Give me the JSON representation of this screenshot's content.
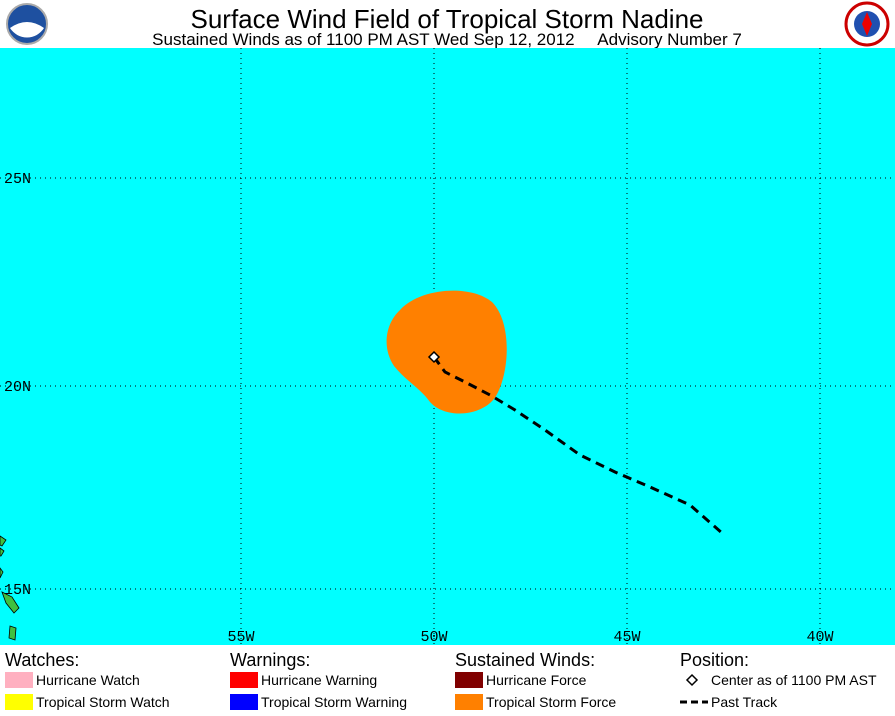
{
  "header": {
    "title": "Surface Wind Field of Tropical Storm Nadine",
    "subtitle": "Sustained Winds as of 1100 PM AST Wed Sep 12, 2012     Advisory Number 7"
  },
  "map": {
    "lat_labels": [
      "25N",
      "20N",
      "15N"
    ],
    "lon_labels": [
      "55W",
      "50W",
      "45W",
      "40W"
    ]
  },
  "legend": [
    {
      "heading": "Watches:",
      "items": [
        {
          "label": "Hurricane Watch",
          "color": "#ffb0c0"
        },
        {
          "label": "Tropical Storm Watch",
          "color": "#ffff00"
        }
      ]
    },
    {
      "heading": "Warnings:",
      "items": [
        {
          "label": "Hurricane Warning",
          "color": "#ff0000"
        },
        {
          "label": "Tropical Storm Warning",
          "color": "#0000ff"
        }
      ]
    },
    {
      "heading": "Sustained Winds:",
      "items": [
        {
          "label": "Hurricane Force",
          "color": "#800000"
        },
        {
          "label": "Tropical Storm Force",
          "color": "#ff8000"
        }
      ]
    },
    {
      "heading": "Position:",
      "items": [
        {
          "label": "Center as of 1100 PM AST"
        },
        {
          "label": "Past Track"
        }
      ]
    }
  ]
}
